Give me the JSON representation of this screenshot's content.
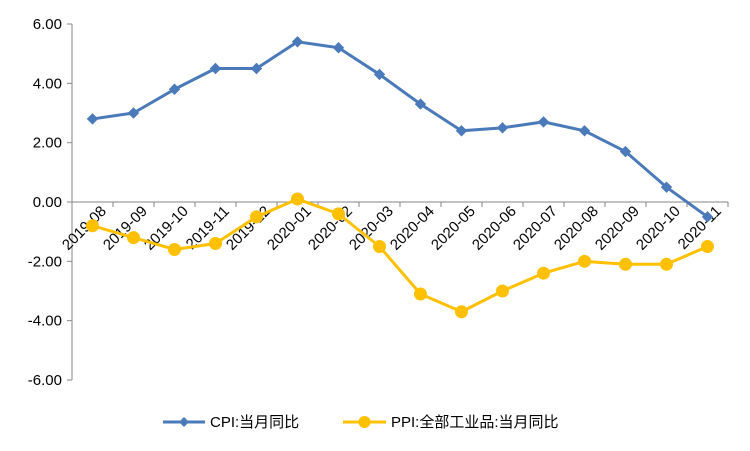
{
  "chart_data": {
    "type": "line",
    "title": "",
    "xlabel": "",
    "ylabel": "",
    "ylim": [
      -6,
      6
    ],
    "yticks": [
      6,
      4,
      2,
      0,
      -2,
      -4,
      -6
    ],
    "ytick_labels": [
      "6.00",
      "4.00",
      "2.00",
      "0.00",
      "-2.00",
      "-4.00",
      "-6.00"
    ],
    "categories": [
      "2019-08",
      "2019-09",
      "2019-10",
      "2019-11",
      "2019-12",
      "2020-01",
      "2020-02",
      "2020-03",
      "2020-04",
      "2020-05",
      "2020-06",
      "2020-07",
      "2020-08",
      "2020-09",
      "2020-10",
      "2020-11"
    ],
    "grid": false,
    "legend_position": "bottom",
    "series": [
      {
        "name": "CPI:当月同比",
        "color": "#4a7ab9",
        "marker": "diamond",
        "values": [
          2.8,
          3.0,
          3.8,
          4.5,
          4.5,
          5.4,
          5.2,
          4.3,
          3.3,
          2.4,
          2.5,
          2.7,
          2.4,
          1.7,
          0.5,
          -0.5
        ]
      },
      {
        "name": "PPI:全部工业品:当月同比",
        "color": "#ffc000",
        "marker": "circle",
        "values": [
          -0.8,
          -1.2,
          -1.6,
          -1.4,
          -0.5,
          0.1,
          -0.4,
          -1.5,
          -3.1,
          -3.7,
          -3.0,
          -2.4,
          -2.0,
          -2.1,
          -2.1,
          -1.5
        ]
      }
    ]
  }
}
